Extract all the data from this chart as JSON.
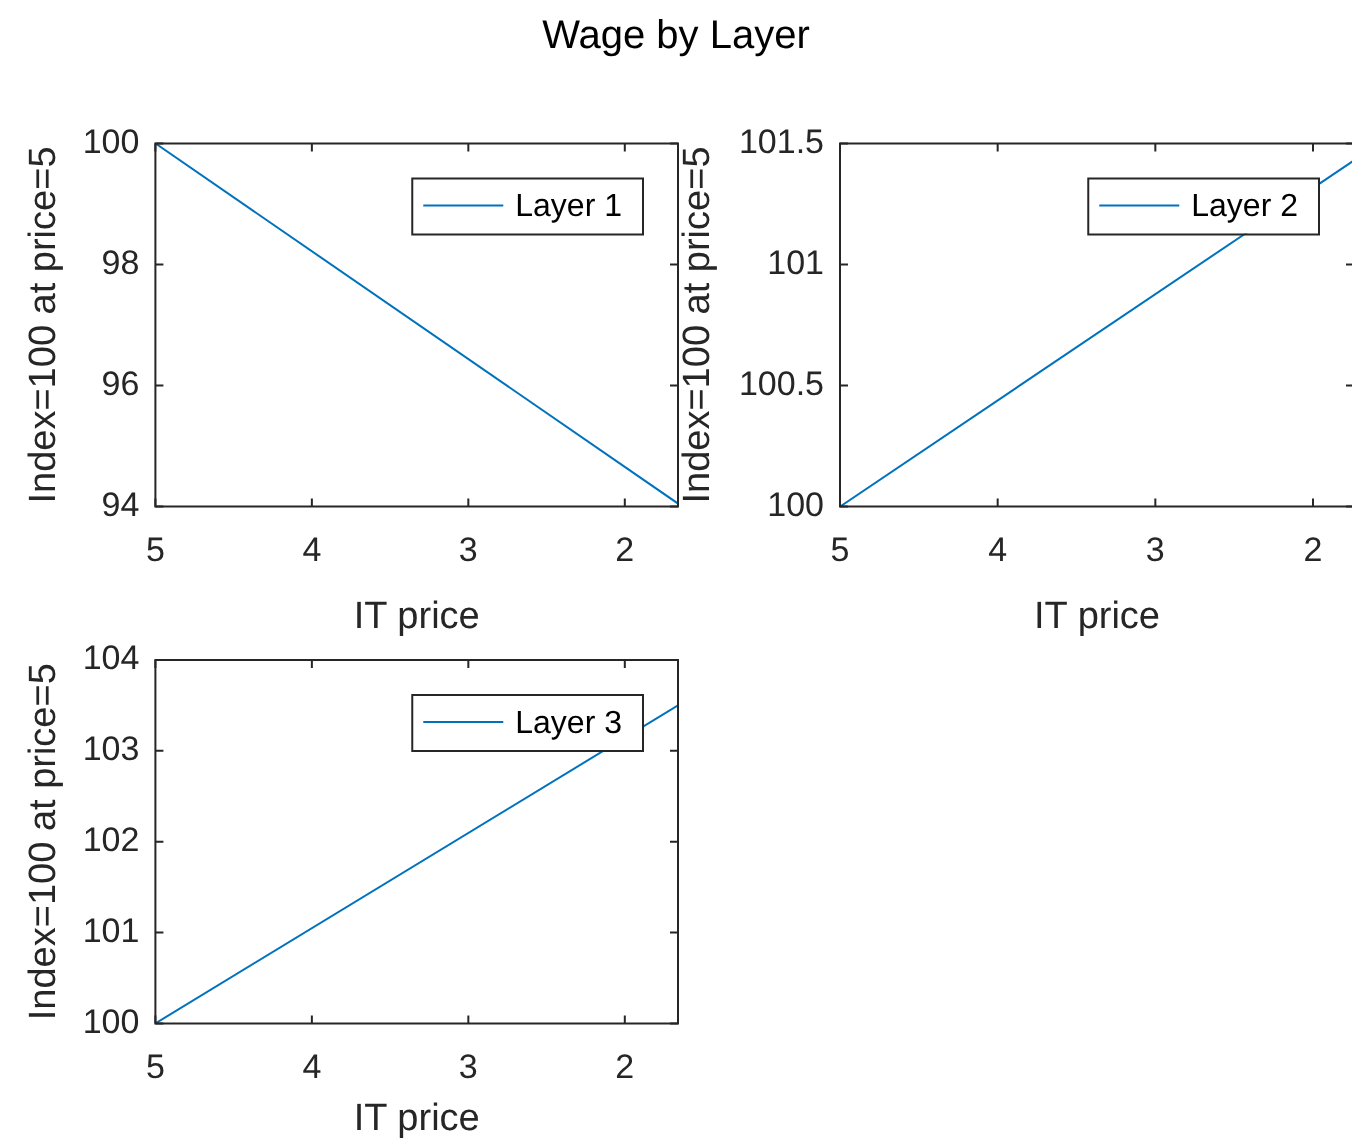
{
  "chart_data": [
    {
      "type": "line",
      "title": "Wage by Layer",
      "xlabel": "IT price",
      "ylabel": "Index=100 at price=5",
      "x": [
        5,
        1.66
      ],
      "series": [
        {
          "name": "Layer 1",
          "color": "#0072bd",
          "values": [
            100,
            94.05
          ]
        }
      ],
      "xlim": [
        5,
        1.66
      ],
      "xticks": [
        5,
        4,
        3,
        2
      ],
      "ylim": [
        94,
        100
      ],
      "yticks": [
        94,
        96,
        98,
        100
      ],
      "legend": "top right",
      "grid": false
    },
    {
      "type": "line",
      "xlabel": "IT price",
      "ylabel": "Index=100 at price=5",
      "x": [
        5,
        1.74
      ],
      "series": [
        {
          "name": "Layer 2",
          "color": "#0072bd",
          "values": [
            100,
            101.43
          ]
        }
      ],
      "xlim": [
        5,
        1.74
      ],
      "xticks": [
        5,
        4,
        3,
        2
      ],
      "ylim": [
        100,
        101.5
      ],
      "yticks": [
        100,
        100.5,
        101,
        101.5
      ],
      "legend": "top right",
      "grid": false
    },
    {
      "type": "line",
      "xlabel": "IT price",
      "ylabel": "Index=100 at price=5",
      "x": [
        5,
        1.66
      ],
      "series": [
        {
          "name": "Layer 3",
          "color": "#0072bd",
          "values": [
            100,
            103.5
          ]
        }
      ],
      "xlim": [
        5,
        1.66
      ],
      "xticks": [
        5,
        4,
        3,
        2
      ],
      "ylim": [
        100,
        104
      ],
      "yticks": [
        100,
        101,
        102,
        103,
        104
      ],
      "legend": "top right",
      "grid": false
    }
  ]
}
